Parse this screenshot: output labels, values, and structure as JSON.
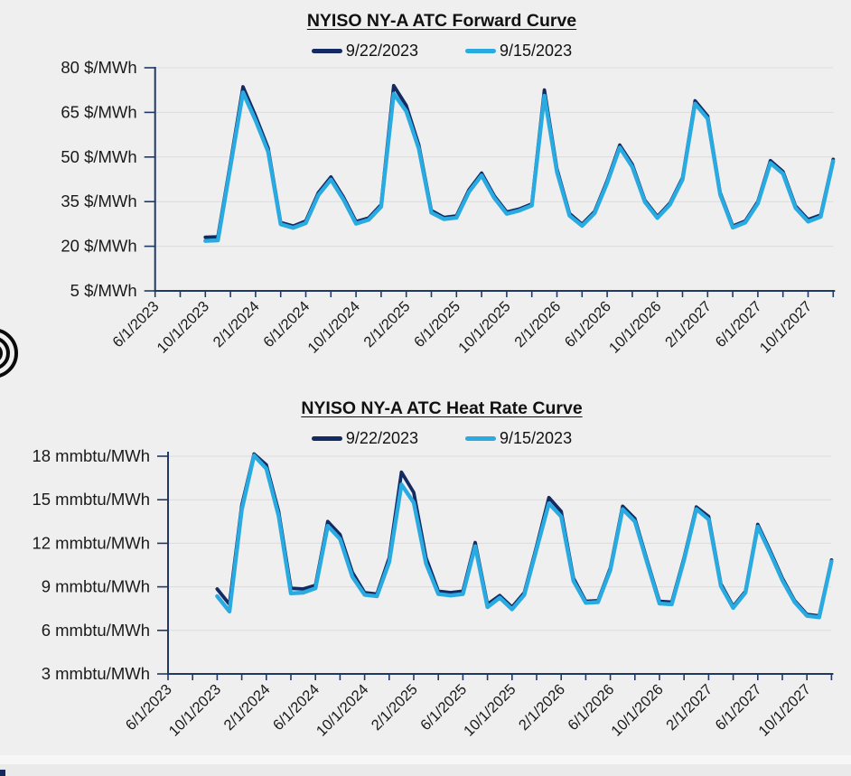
{
  "page": {
    "background_color": "#efefef",
    "accent_navy": "#142a63",
    "accent_cyan": "#29abe2",
    "axis_color": "#1f3864"
  },
  "decorations": {
    "logo": "concentric-arcs-logo",
    "corner_notch_color": "#16295c"
  },
  "chart_data": [
    {
      "type": "line",
      "title": "NYISO NY-A ATC Forward Curve",
      "y_unit": "$/MWh",
      "ylim": [
        5,
        80
      ],
      "y_ticks": [
        5,
        20,
        35,
        50,
        65,
        80
      ],
      "grid": "horizontal",
      "legend_position": "top",
      "x_tick_labels": [
        "6/1/2023",
        "10/1/2023",
        "2/1/2024",
        "6/1/2024",
        "10/1/2024",
        "2/1/2025",
        "6/1/2025",
        "10/1/2025",
        "2/1/2026",
        "6/1/2026",
        "10/1/2026",
        "2/1/2027",
        "6/1/2027",
        "10/1/2027"
      ],
      "x": [
        "10/1/2023",
        "11/1/2023",
        "12/1/2023",
        "1/1/2024",
        "2/1/2024",
        "3/1/2024",
        "4/1/2024",
        "5/1/2024",
        "6/1/2024",
        "7/1/2024",
        "8/1/2024",
        "9/1/2024",
        "10/1/2024",
        "11/1/2024",
        "12/1/2024",
        "1/1/2025",
        "2/1/2025",
        "3/1/2025",
        "4/1/2025",
        "5/1/2025",
        "6/1/2025",
        "7/1/2025",
        "8/1/2025",
        "9/1/2025",
        "10/1/2025",
        "11/1/2025",
        "12/1/2025",
        "1/1/2026",
        "2/1/2026",
        "3/1/2026",
        "4/1/2026",
        "5/1/2026",
        "6/1/2026",
        "7/1/2026",
        "8/1/2026",
        "9/1/2026",
        "10/1/2026",
        "11/1/2026",
        "12/1/2026",
        "1/1/2027",
        "2/1/2027",
        "3/1/2027",
        "4/1/2027",
        "5/1/2027",
        "6/1/2027",
        "7/1/2027",
        "8/1/2027",
        "9/1/2027",
        "10/1/2027",
        "11/1/2027",
        "12/1/2027"
      ],
      "series": [
        {
          "name": "9/22/2023",
          "color": "#142a63",
          "values": [
            23.0,
            23.2,
            48.0,
            73.6,
            63.8,
            53.0,
            28.0,
            26.8,
            28.5,
            38.0,
            43.3,
            36.5,
            28.3,
            29.5,
            34.0,
            74.0,
            67.3,
            54.0,
            32.0,
            29.7,
            30.2,
            39.0,
            44.6,
            37.0,
            31.5,
            32.5,
            34.2,
            72.5,
            46.0,
            31.0,
            27.4,
            31.7,
            42.0,
            54.0,
            47.5,
            35.5,
            30.0,
            34.5,
            43.0,
            68.9,
            63.8,
            38.0,
            26.8,
            28.5,
            35.0,
            48.8,
            45.1,
            33.5,
            29.0,
            30.5,
            49.2
          ]
        },
        {
          "name": "9/15/2023",
          "color": "#29abe2",
          "values": [
            21.8,
            22.0,
            46.8,
            71.7,
            62.3,
            51.8,
            27.4,
            26.2,
            27.8,
            37.2,
            42.4,
            35.7,
            27.6,
            28.9,
            33.3,
            71.3,
            65.4,
            52.8,
            31.3,
            29.1,
            29.6,
            38.3,
            43.8,
            36.3,
            30.9,
            32.0,
            33.7,
            70.6,
            45.0,
            30.3,
            26.9,
            31.1,
            41.3,
            53.2,
            46.7,
            34.9,
            29.5,
            34.0,
            42.4,
            67.9,
            62.9,
            37.4,
            26.3,
            28.0,
            34.4,
            48.0,
            44.4,
            32.9,
            28.3,
            29.9,
            48.6
          ]
        }
      ]
    },
    {
      "type": "line",
      "title": "NYISO NY-A ATC Heat Rate Curve",
      "y_unit": "mmbtu/MWh",
      "ylim": [
        3,
        18
      ],
      "y_ticks": [
        3,
        6,
        9,
        12,
        15,
        18
      ],
      "grid": "horizontal",
      "legend_position": "top",
      "clipped_at_top": "Jan 2024 peak exceeds 18 and is clipped at plot top",
      "x_tick_labels": [
        "6/1/2023",
        "10/1/2023",
        "2/1/2024",
        "6/1/2024",
        "10/1/2024",
        "2/1/2025",
        "6/1/2025",
        "10/1/2025",
        "2/1/2026",
        "6/1/2026",
        "10/1/2026",
        "2/1/2027",
        "6/1/2027",
        "10/1/2027"
      ],
      "x": [
        "10/1/2023",
        "11/1/2023",
        "12/1/2023",
        "1/1/2024",
        "2/1/2024",
        "3/1/2024",
        "4/1/2024",
        "5/1/2024",
        "6/1/2024",
        "7/1/2024",
        "8/1/2024",
        "9/1/2024",
        "10/1/2024",
        "11/1/2024",
        "12/1/2024",
        "1/1/2025",
        "2/1/2025",
        "3/1/2025",
        "4/1/2025",
        "5/1/2025",
        "6/1/2025",
        "7/1/2025",
        "8/1/2025",
        "9/1/2025",
        "10/1/2025",
        "11/1/2025",
        "12/1/2025",
        "1/1/2026",
        "2/1/2026",
        "3/1/2026",
        "4/1/2026",
        "5/1/2026",
        "6/1/2026",
        "7/1/2026",
        "8/1/2026",
        "9/1/2026",
        "10/1/2026",
        "11/1/2026",
        "12/1/2026",
        "1/1/2027",
        "2/1/2027",
        "3/1/2027",
        "4/1/2027",
        "5/1/2027",
        "6/1/2027",
        "7/1/2027",
        "8/1/2027",
        "9/1/2027",
        "10/1/2027",
        "11/1/2027",
        "12/1/2027"
      ],
      "series": [
        {
          "name": "9/22/2023",
          "color": "#142a63",
          "values": [
            8.85,
            7.8,
            14.6,
            18.15,
            17.4,
            14.2,
            8.9,
            8.85,
            9.1,
            13.5,
            12.6,
            10.0,
            8.6,
            8.5,
            11.0,
            16.9,
            15.5,
            11.0,
            8.7,
            8.6,
            8.7,
            12.05,
            7.8,
            8.4,
            7.6,
            8.6,
            11.8,
            15.15,
            14.2,
            9.6,
            8.0,
            8.05,
            10.3,
            14.55,
            13.7,
            10.8,
            8.0,
            7.95,
            11.0,
            14.5,
            13.85,
            9.2,
            7.65,
            8.7,
            13.3,
            11.5,
            9.6,
            8.05,
            7.1,
            7.0,
            10.85
          ]
        },
        {
          "name": "9/15/2023",
          "color": "#29abe2",
          "values": [
            8.35,
            7.3,
            14.3,
            18.05,
            17.15,
            13.9,
            8.55,
            8.6,
            8.9,
            13.2,
            12.3,
            9.7,
            8.45,
            8.35,
            10.7,
            16.05,
            14.8,
            10.6,
            8.5,
            8.4,
            8.5,
            11.8,
            7.6,
            8.25,
            7.45,
            8.45,
            11.6,
            14.75,
            13.85,
            9.4,
            7.9,
            7.95,
            10.15,
            14.35,
            13.5,
            10.65,
            7.85,
            7.8,
            10.85,
            14.35,
            13.65,
            9.05,
            7.55,
            8.6,
            13.15,
            11.35,
            9.45,
            7.95,
            7.0,
            6.9,
            10.75
          ]
        }
      ]
    }
  ]
}
